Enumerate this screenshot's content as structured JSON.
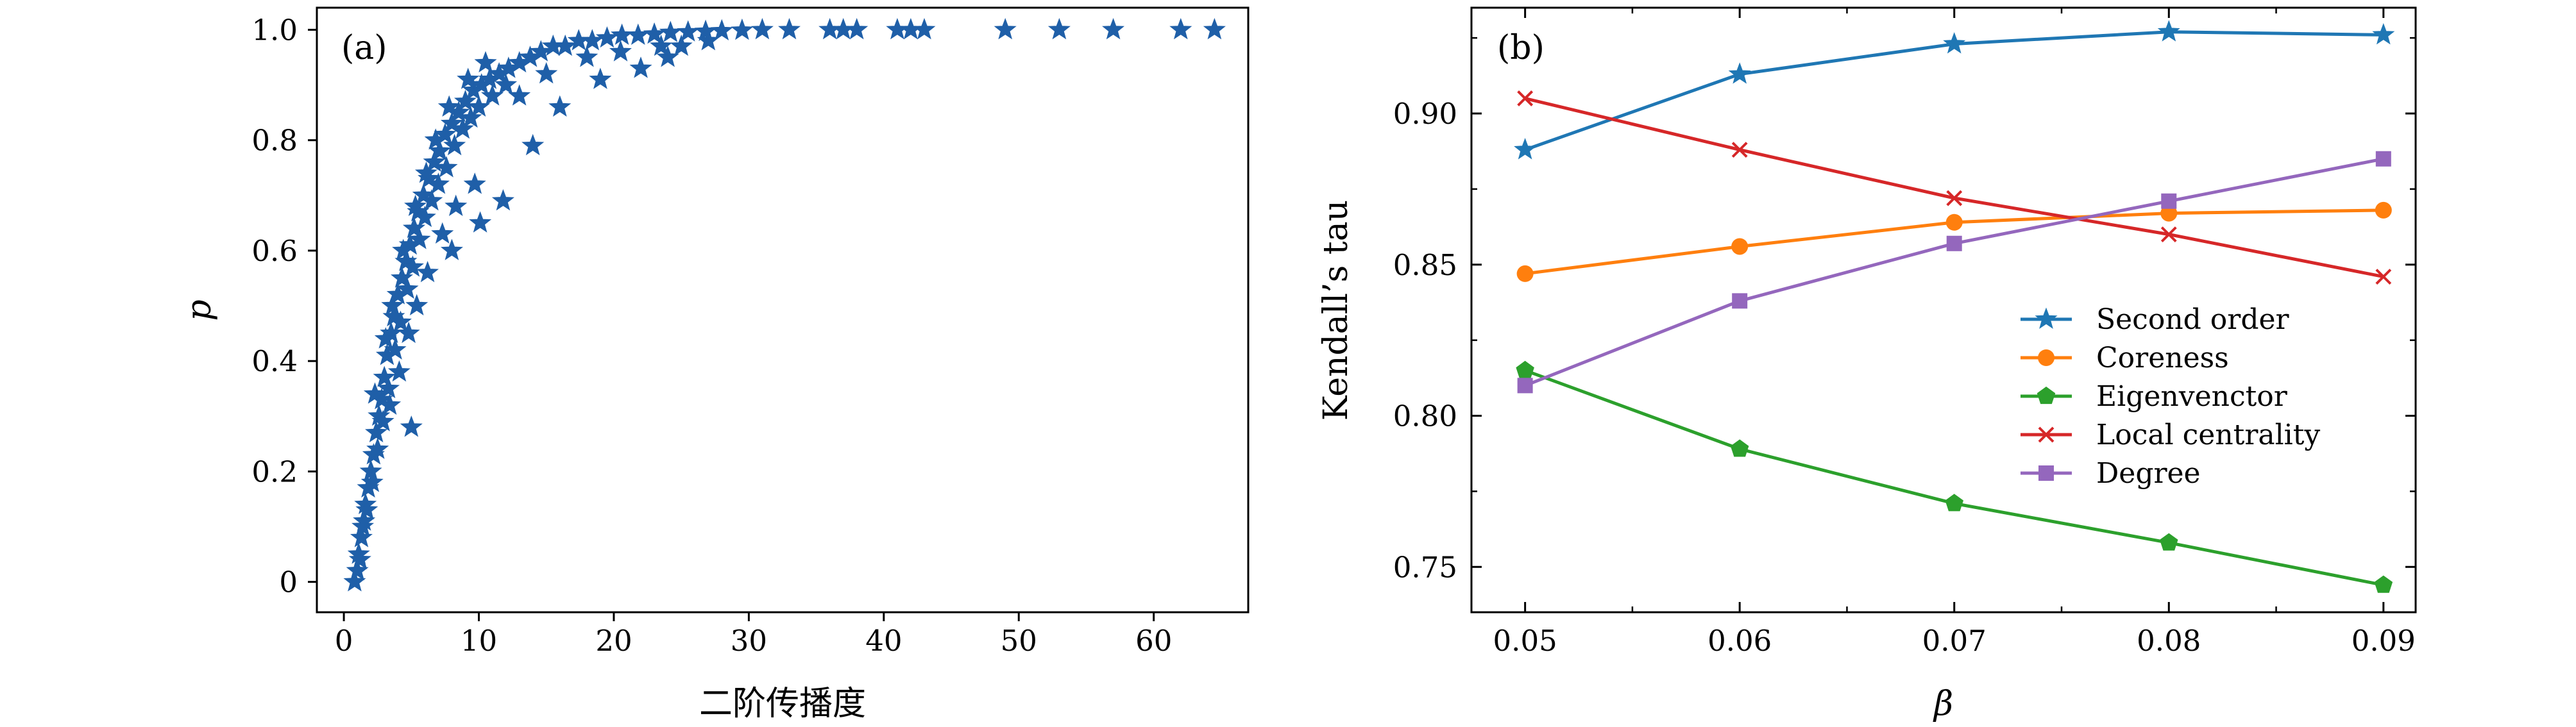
{
  "chart_data": [
    {
      "panel_label": "(a)",
      "type": "scatter",
      "xlabel": "二阶传播度",
      "ylabel": "p",
      "xlim": [
        -2,
        67
      ],
      "ylim": [
        -0.055,
        1.04
      ],
      "x_ticks": [
        0,
        10,
        20,
        30,
        40,
        50,
        60
      ],
      "y_ticks": [
        0,
        0.2,
        0.4,
        0.6,
        0.8,
        1.0
      ],
      "x_tick_labels": [
        "0",
        "10",
        "20",
        "30",
        "40",
        "50",
        "60"
      ],
      "y_tick_labels": [
        "0",
        "0.2",
        "0.4",
        "0.6",
        "0.8",
        "1.0"
      ],
      "marker": "star",
      "color": "#1f5fa8",
      "points": [
        [
          0.8,
          0.0
        ],
        [
          1.0,
          0.02
        ],
        [
          1.1,
          0.05
        ],
        [
          1.3,
          0.08
        ],
        [
          1.5,
          0.11
        ],
        [
          1.6,
          0.14
        ],
        [
          1.8,
          0.17
        ],
        [
          2.0,
          0.2
        ],
        [
          2.2,
          0.23
        ],
        [
          2.4,
          0.27
        ],
        [
          2.6,
          0.3
        ],
        [
          2.8,
          0.33
        ],
        [
          3.0,
          0.37
        ],
        [
          3.2,
          0.41
        ],
        [
          3.5,
          0.45
        ],
        [
          3.7,
          0.48
        ],
        [
          4.0,
          0.52
        ],
        [
          4.3,
          0.55
        ],
        [
          4.6,
          0.58
        ],
        [
          4.9,
          0.61
        ],
        [
          5.2,
          0.64
        ],
        [
          5.5,
          0.67
        ],
        [
          5.9,
          0.7
        ],
        [
          6.3,
          0.73
        ],
        [
          6.7,
          0.76
        ],
        [
          7.1,
          0.78
        ],
        [
          7.5,
          0.81
        ],
        [
          8.0,
          0.83
        ],
        [
          8.5,
          0.85
        ],
        [
          9.0,
          0.87
        ],
        [
          9.6,
          0.89
        ],
        [
          10.2,
          0.9
        ],
        [
          10.8,
          0.91
        ],
        [
          11.5,
          0.92
        ],
        [
          12.2,
          0.93
        ],
        [
          13.0,
          0.94
        ],
        [
          13.8,
          0.95
        ],
        [
          14.6,
          0.96
        ],
        [
          15.5,
          0.97
        ],
        [
          16.4,
          0.97
        ],
        [
          17.4,
          0.98
        ],
        [
          18.4,
          0.98
        ],
        [
          19.5,
          0.985
        ],
        [
          20.6,
          0.99
        ],
        [
          21.8,
          0.99
        ],
        [
          23.0,
          0.992
        ],
        [
          24.2,
          0.995
        ],
        [
          25.5,
          0.996
        ],
        [
          26.8,
          0.997
        ],
        [
          28.0,
          0.998
        ],
        [
          29.5,
          0.999
        ],
        [
          31.0,
          1.0
        ],
        [
          33.0,
          1.0
        ],
        [
          36.0,
          1.0
        ],
        [
          37.0,
          1.0
        ],
        [
          38.0,
          1.0
        ],
        [
          41.0,
          1.0
        ],
        [
          42.0,
          1.0
        ],
        [
          43.0,
          1.0
        ],
        [
          49.0,
          1.0
        ],
        [
          53.0,
          1.0
        ],
        [
          57.0,
          1.0
        ],
        [
          62.0,
          1.0
        ],
        [
          64.5,
          1.0
        ],
        [
          1.2,
          0.04
        ],
        [
          1.4,
          0.1
        ],
        [
          1.7,
          0.13
        ],
        [
          2.1,
          0.18
        ],
        [
          2.5,
          0.24
        ],
        [
          2.9,
          0.29
        ],
        [
          3.3,
          0.35
        ],
        [
          3.8,
          0.42
        ],
        [
          4.2,
          0.47
        ],
        [
          4.7,
          0.53
        ],
        [
          5.1,
          0.57
        ],
        [
          5.6,
          0.62
        ],
        [
          6.0,
          0.66
        ],
        [
          6.5,
          0.69
        ],
        [
          7.0,
          0.72
        ],
        [
          7.6,
          0.75
        ],
        [
          8.2,
          0.79
        ],
        [
          8.8,
          0.82
        ],
        [
          9.4,
          0.84
        ],
        [
          10.0,
          0.86
        ],
        [
          11.0,
          0.88
        ],
        [
          12.0,
          0.9
        ],
        [
          2.3,
          0.34
        ],
        [
          3.1,
          0.44
        ],
        [
          3.6,
          0.5
        ],
        [
          4.4,
          0.6
        ],
        [
          5.3,
          0.68
        ],
        [
          6.1,
          0.74
        ],
        [
          6.8,
          0.8
        ],
        [
          7.8,
          0.86
        ],
        [
          9.2,
          0.91
        ],
        [
          10.5,
          0.94
        ],
        [
          3.4,
          0.32
        ],
        [
          4.1,
          0.38
        ],
        [
          4.8,
          0.45
        ],
        [
          5.4,
          0.5
        ],
        [
          6.2,
          0.56
        ],
        [
          7.3,
          0.63
        ],
        [
          8.3,
          0.68
        ],
        [
          9.7,
          0.72
        ],
        [
          5.0,
          0.28
        ],
        [
          8.0,
          0.6
        ],
        [
          11.8,
          0.69
        ],
        [
          10.1,
          0.65
        ],
        [
          14.0,
          0.79
        ],
        [
          16.0,
          0.86
        ],
        [
          19.0,
          0.91
        ],
        [
          22.0,
          0.93
        ],
        [
          24.0,
          0.95
        ],
        [
          25.0,
          0.97
        ],
        [
          27.0,
          0.98
        ],
        [
          18.0,
          0.95
        ],
        [
          20.5,
          0.96
        ],
        [
          23.5,
          0.97
        ],
        [
          15.0,
          0.92
        ],
        [
          13.0,
          0.88
        ]
      ]
    },
    {
      "panel_label": "(b)",
      "type": "line",
      "xlabel": "β",
      "ylabel": "Kendall’s tau",
      "xlim": [
        0.0475,
        0.0915
      ],
      "ylim": [
        0.735,
        0.935
      ],
      "x_ticks": [
        0.05,
        0.06,
        0.07,
        0.08,
        0.09
      ],
      "x_tick_labels": [
        "0.05",
        "0.06",
        "0.07",
        "0.08",
        "0.09"
      ],
      "x_minor_ticks": [
        0.055,
        0.065,
        0.075,
        0.085
      ],
      "y_ticks": [
        0.75,
        0.8,
        0.85,
        0.9
      ],
      "y_tick_labels": [
        "0.75",
        "0.80",
        "0.85",
        "0.90"
      ],
      "y_minor_ticks": [
        0.775,
        0.825,
        0.875,
        0.925
      ],
      "x": [
        0.05,
        0.06,
        0.07,
        0.08,
        0.09
      ],
      "legend_position": "center-right",
      "series": [
        {
          "name": "Second order",
          "values": [
            0.888,
            0.913,
            0.923,
            0.927,
            0.926
          ],
          "color": "#1f77b4",
          "marker": "star"
        },
        {
          "name": "Coreness",
          "values": [
            0.847,
            0.856,
            0.864,
            0.867,
            0.868
          ],
          "color": "#ff7f0e",
          "marker": "circle"
        },
        {
          "name": "Eigenvenctor",
          "values": [
            0.815,
            0.789,
            0.771,
            0.758,
            0.744
          ],
          "color": "#2ca02c",
          "marker": "pentagon"
        },
        {
          "name": "Local centrality",
          "values": [
            0.905,
            0.888,
            0.872,
            0.86,
            0.846
          ],
          "color": "#d62728",
          "marker": "x"
        },
        {
          "name": "Degree",
          "values": [
            0.81,
            0.838,
            0.857,
            0.871,
            0.885
          ],
          "color": "#9467bd",
          "marker": "square"
        }
      ]
    }
  ]
}
